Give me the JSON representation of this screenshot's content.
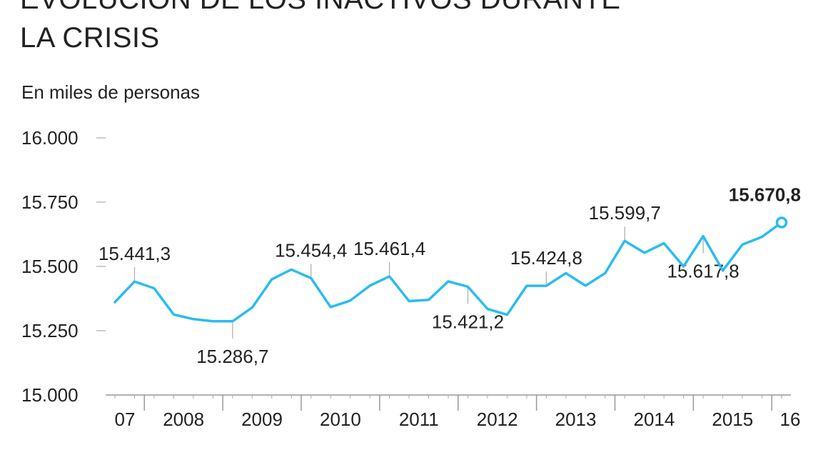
{
  "chart_data": {
    "type": "line",
    "title": [
      "EVOLUCIÓN DE LOS INACTIVOS DURANTE",
      "LA CRISIS"
    ],
    "subtitle": "En miles de personas",
    "ylim": [
      15000,
      16000
    ],
    "yticks": [
      {
        "value": 16000,
        "label": "16.000"
      },
      {
        "value": 15750,
        "label": "15.750"
      },
      {
        "value": 15500,
        "label": "15.500"
      },
      {
        "value": 15250,
        "label": "15.250"
      },
      {
        "value": 15000,
        "label": "15.000"
      }
    ],
    "year_labels": [
      "07",
      "2008",
      "2009",
      "2010",
      "2011",
      "2012",
      "2013",
      "2014",
      "2015",
      "16"
    ],
    "values": [
      15361,
      15441.3,
      15415,
      15313,
      15295,
      15287,
      15286.7,
      15340,
      15450,
      15488,
      15454.4,
      15342,
      15367,
      15425,
      15461.4,
      15365,
      15370,
      15442,
      15421.2,
      15335,
      15312,
      15424.8,
      15424.8,
      15474,
      15425,
      15474,
      15599.7,
      15553,
      15590,
      15500,
      15617.8,
      15484,
      15585,
      15615,
      15670.8
    ],
    "annotations": [
      {
        "index": 1,
        "label": "15.441,3",
        "pos": "above"
      },
      {
        "index": 6,
        "label": "15.286,7",
        "pos": "below"
      },
      {
        "index": 10,
        "label": "15.454,4",
        "pos": "above"
      },
      {
        "index": 14,
        "label": "15.461,4",
        "pos": "above"
      },
      {
        "index": 18,
        "label": "15.421,2",
        "pos": "below"
      },
      {
        "index": 22,
        "label": "15.424,8",
        "pos": "above"
      },
      {
        "index": 26,
        "label": "15.599,7",
        "pos": "above"
      },
      {
        "index": 30,
        "label": "15.617,8",
        "pos": "below"
      },
      {
        "index": 34,
        "label": "15.670,8",
        "pos": "bold-end"
      }
    ],
    "line_color": "#2bbcf0"
  }
}
